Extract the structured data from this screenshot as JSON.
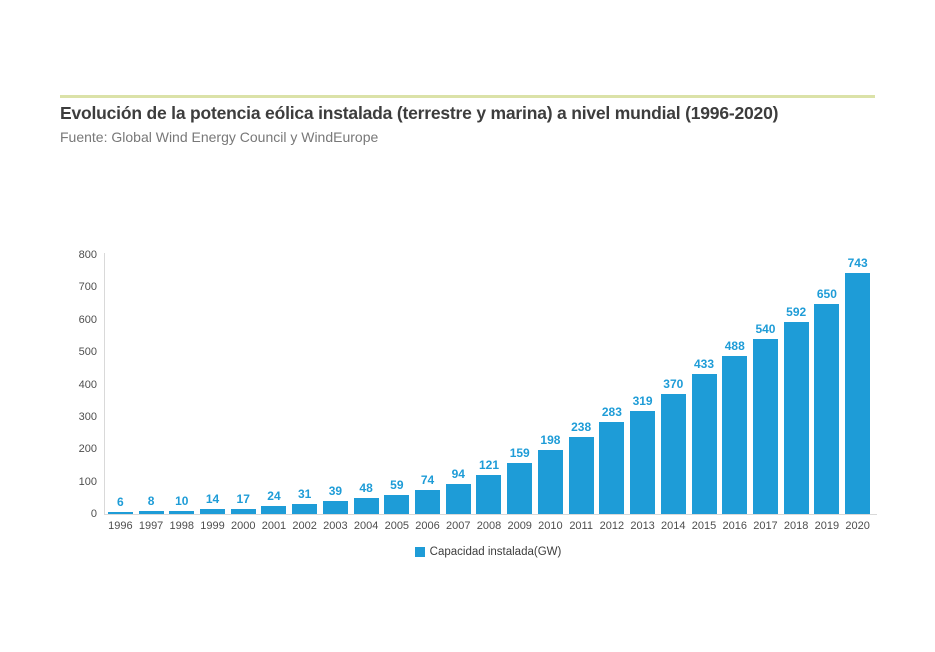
{
  "header": {
    "title": "Evolución de la potencia eólica instalada (terrestre y marina) a nivel mundial (1996-2020)",
    "source": "Fuente: Global Wind Energy Council y WindEurope"
  },
  "legend": {
    "label": "Capacidad instalada(GW)"
  },
  "colors": {
    "bar": "#1e9cd7",
    "value_label": "#1e9cd7",
    "accent_rule": "#dbe2a8",
    "axis_line": "#d9d9d9",
    "title_text": "#3d3d3d",
    "subtitle_text": "#787878",
    "axis_text": "#4e4e4e",
    "background": "#ffffff"
  },
  "chart_data": {
    "type": "bar",
    "title": "Evolución de la potencia eólica instalada (terrestre y marina) a nivel mundial (1996-2020)",
    "subtitle": "Fuente: Global Wind Energy Council y WindEurope",
    "categories": [
      "1996",
      "1997",
      "1998",
      "1999",
      "2000",
      "2001",
      "2002",
      "2003",
      "2004",
      "2005",
      "2006",
      "2007",
      "2008",
      "2009",
      "2010",
      "2011",
      "2012",
      "2013",
      "2014",
      "2015",
      "2016",
      "2017",
      "2018",
      "2019",
      "2020"
    ],
    "values": [
      6,
      8,
      10,
      14,
      17,
      24,
      31,
      39,
      48,
      59,
      74,
      94,
      121,
      159,
      198,
      238,
      283,
      319,
      370,
      433,
      488,
      540,
      592,
      650,
      743
    ],
    "series_name": "Capacidad instalada(GW)",
    "xlabel": "",
    "ylabel": "",
    "ylim": [
      0,
      800
    ],
    "yticks": [
      0,
      100,
      200,
      300,
      400,
      500,
      600,
      700,
      800
    ],
    "grid": false,
    "value_labels": true,
    "legend_position": "bottom-center"
  }
}
